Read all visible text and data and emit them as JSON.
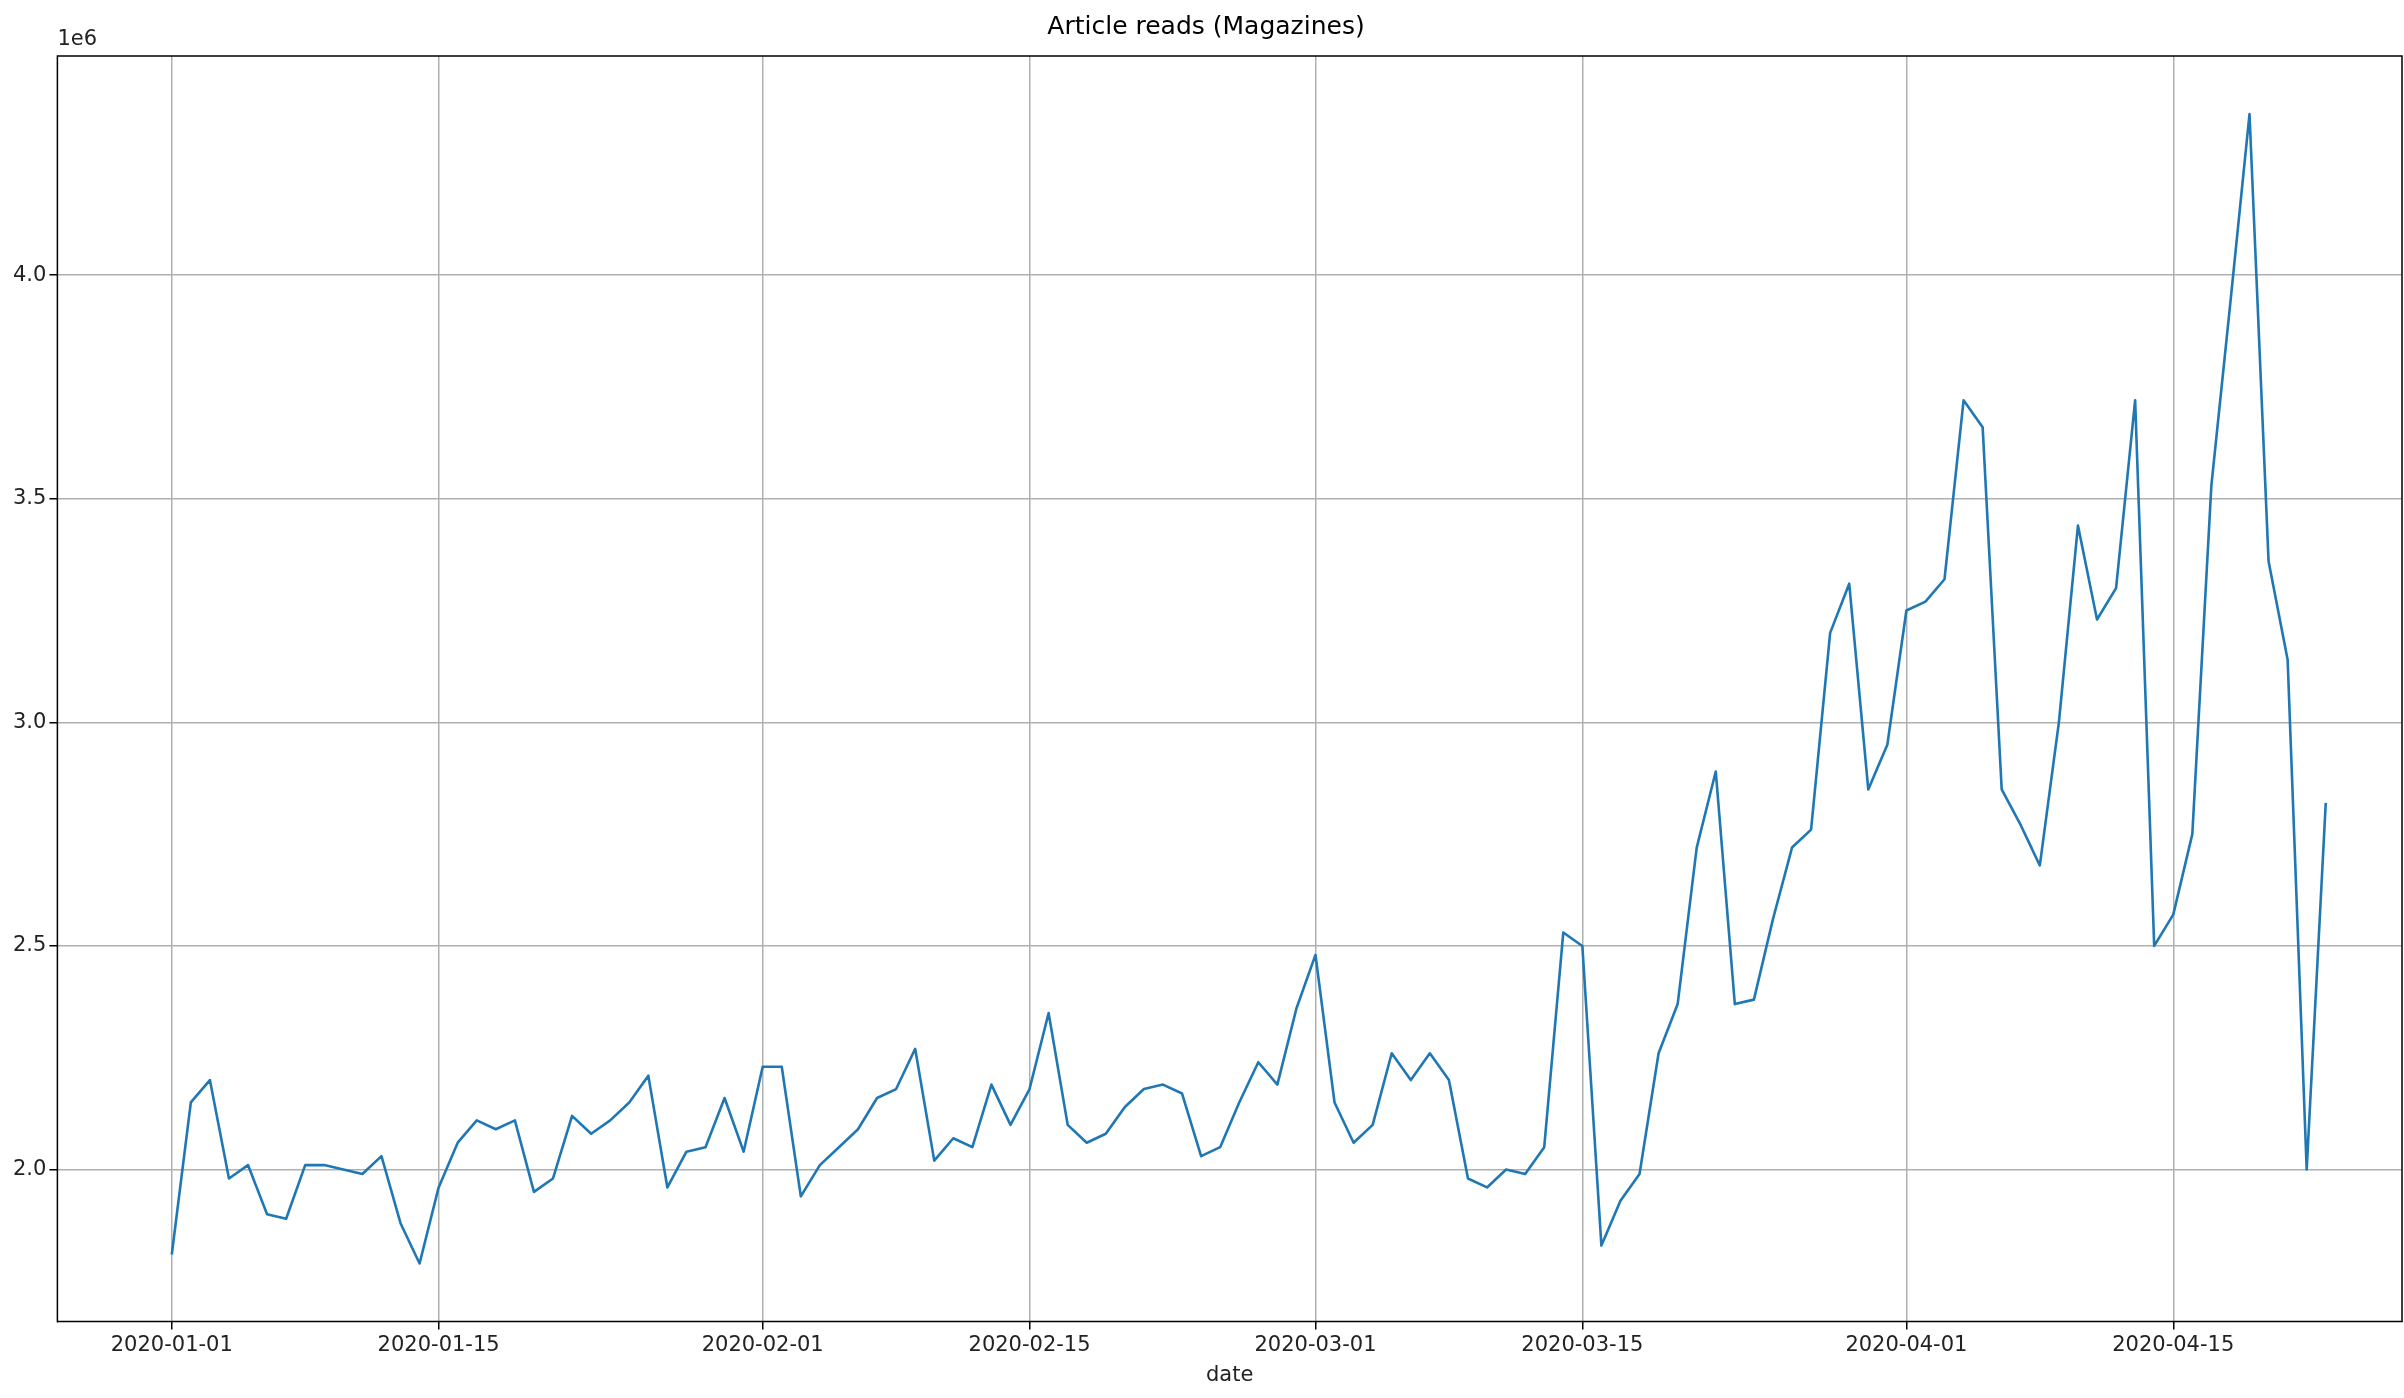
{
  "chart_data": {
    "type": "line",
    "title": "Article reads (Magazines)",
    "xlabel": "date",
    "annotations": [
      "1e6"
    ],
    "x": [
      "2020-01-01",
      "2020-01-02",
      "2020-01-03",
      "2020-01-04",
      "2020-01-05",
      "2020-01-06",
      "2020-01-07",
      "2020-01-08",
      "2020-01-09",
      "2020-01-10",
      "2020-01-11",
      "2020-01-12",
      "2020-01-13",
      "2020-01-14",
      "2020-01-15",
      "2020-01-16",
      "2020-01-17",
      "2020-01-18",
      "2020-01-19",
      "2020-01-20",
      "2020-01-21",
      "2020-01-22",
      "2020-01-23",
      "2020-01-24",
      "2020-01-25",
      "2020-01-26",
      "2020-01-27",
      "2020-01-28",
      "2020-01-29",
      "2020-01-30",
      "2020-01-31",
      "2020-02-01",
      "2020-02-02",
      "2020-02-03",
      "2020-02-04",
      "2020-02-05",
      "2020-02-06",
      "2020-02-07",
      "2020-02-08",
      "2020-02-09",
      "2020-02-10",
      "2020-02-11",
      "2020-02-12",
      "2020-02-13",
      "2020-02-14",
      "2020-02-15",
      "2020-02-16",
      "2020-02-17",
      "2020-02-18",
      "2020-02-19",
      "2020-02-20",
      "2020-02-21",
      "2020-02-22",
      "2020-02-23",
      "2020-02-24",
      "2020-02-25",
      "2020-02-26",
      "2020-02-27",
      "2020-02-28",
      "2020-02-29",
      "2020-03-01",
      "2020-03-02",
      "2020-03-03",
      "2020-03-04",
      "2020-03-05",
      "2020-03-06",
      "2020-03-07",
      "2020-03-08",
      "2020-03-09",
      "2020-03-10",
      "2020-03-11",
      "2020-03-12",
      "2020-03-13",
      "2020-03-14",
      "2020-03-15",
      "2020-03-16",
      "2020-03-17",
      "2020-03-18",
      "2020-03-19",
      "2020-03-20",
      "2020-03-21",
      "2020-03-22",
      "2020-03-23",
      "2020-03-24",
      "2020-03-25",
      "2020-03-26",
      "2020-03-27",
      "2020-03-28",
      "2020-03-29",
      "2020-03-30",
      "2020-03-31",
      "2020-04-01",
      "2020-04-02",
      "2020-04-03",
      "2020-04-04",
      "2020-04-05",
      "2020-04-06",
      "2020-04-07",
      "2020-04-08",
      "2020-04-09",
      "2020-04-10",
      "2020-04-11",
      "2020-04-12",
      "2020-04-13",
      "2020-04-14",
      "2020-04-15",
      "2020-04-16",
      "2020-04-17",
      "2020-04-18",
      "2020-04-19",
      "2020-04-20",
      "2020-04-21",
      "2020-04-22",
      "2020-04-23"
    ],
    "series": [
      {
        "color": "#1f77b4",
        "values": [
          1.81,
          2.15,
          2.2,
          1.98,
          2.01,
          1.9,
          1.89,
          2.01,
          2.01,
          2.0,
          1.99,
          2.03,
          1.88,
          1.79,
          1.96,
          2.06,
          2.11,
          2.09,
          2.11,
          1.95,
          1.98,
          2.12,
          2.08,
          2.11,
          2.15,
          2.21,
          1.96,
          2.04,
          2.05,
          2.16,
          2.04,
          2.23,
          2.23,
          1.94,
          2.01,
          2.05,
          2.09,
          2.16,
          2.18,
          2.27,
          2.02,
          2.07,
          2.05,
          2.19,
          2.1,
          2.18,
          2.35,
          2.1,
          2.06,
          2.08,
          2.14,
          2.18,
          2.19,
          2.17,
          2.03,
          2.05,
          2.15,
          2.24,
          2.19,
          2.36,
          2.48,
          2.15,
          2.06,
          2.1,
          2.26,
          2.2,
          2.26,
          2.2,
          1.98,
          1.96,
          2.0,
          1.99,
          2.05,
          2.53,
          2.5,
          1.83,
          1.93,
          1.99,
          2.26,
          2.37,
          2.72,
          2.89,
          2.37,
          2.38,
          2.56,
          2.72,
          2.76,
          3.2,
          3.31,
          2.85,
          2.95,
          3.25,
          3.27,
          3.32,
          3.72,
          3.66,
          2.85,
          2.77,
          2.68,
          3.0,
          3.44,
          3.23,
          3.3,
          3.72,
          2.5,
          2.57,
          2.75,
          3.53,
          3.94,
          4.36,
          3.36,
          3.14,
          2.0,
          2.82
        ]
      }
    ],
    "xlim": [
      "2019-12-26",
      "2020-04-27"
    ],
    "xticks": [
      "2020-01-01",
      "2020-01-15",
      "2020-02-01",
      "2020-02-15",
      "2020-03-01",
      "2020-03-15",
      "2020-04-01",
      "2020-04-15"
    ],
    "ylim": [
      1.66,
      4.49
    ],
    "yticks": [
      {
        "value": 2,
        "label": "2.0"
      },
      {
        "value": 2.5,
        "label": "2.5"
      },
      {
        "value": 3,
        "label": "3.0"
      },
      {
        "value": 3.5,
        "label": "3.5"
      },
      {
        "value": 4,
        "label": "4.0"
      }
    ],
    "grid": true,
    "legend": false,
    "marker": "none",
    "line_style": "solid"
  }
}
